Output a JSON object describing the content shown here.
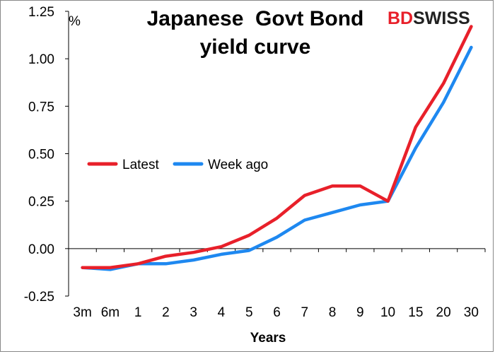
{
  "chart_data": {
    "type": "line",
    "title": [
      "Japanese  Govt Bond",
      "yield curve"
    ],
    "unit": "%",
    "xlabel": "Years",
    "ylabel": "",
    "categories": [
      "3m",
      "6m",
      "1",
      "2",
      "3",
      "4",
      "5",
      "6",
      "7",
      "8",
      "9",
      "10",
      "15",
      "20",
      "30"
    ],
    "ylim": [
      -0.25,
      1.25
    ],
    "yticks": [
      "-0.25",
      "0.00",
      "0.25",
      "0.50",
      "0.75",
      "1.00",
      "1.25"
    ],
    "ytick_values": [
      -0.25,
      0.0,
      0.25,
      0.5,
      0.75,
      1.0,
      1.25
    ],
    "grid": false,
    "legend_position": "middle-left",
    "series": [
      {
        "name": "Latest",
        "color": "#e8202a",
        "values": [
          -0.1,
          -0.1,
          -0.08,
          -0.04,
          -0.02,
          0.01,
          0.07,
          0.16,
          0.28,
          0.33,
          0.33,
          0.25,
          0.64,
          0.87,
          1.17
        ]
      },
      {
        "name": "Week ago",
        "color": "#1e88f0",
        "values": [
          -0.1,
          -0.11,
          -0.08,
          -0.08,
          -0.06,
          -0.03,
          -0.01,
          0.06,
          0.15,
          0.19,
          0.23,
          0.25,
          0.53,
          0.77,
          1.06
        ]
      }
    ]
  },
  "brand": {
    "logo_part1": "BD",
    "logo_part2": "SWISS",
    "colors": {
      "bd": "#e8202a",
      "swiss": "#222222"
    }
  }
}
